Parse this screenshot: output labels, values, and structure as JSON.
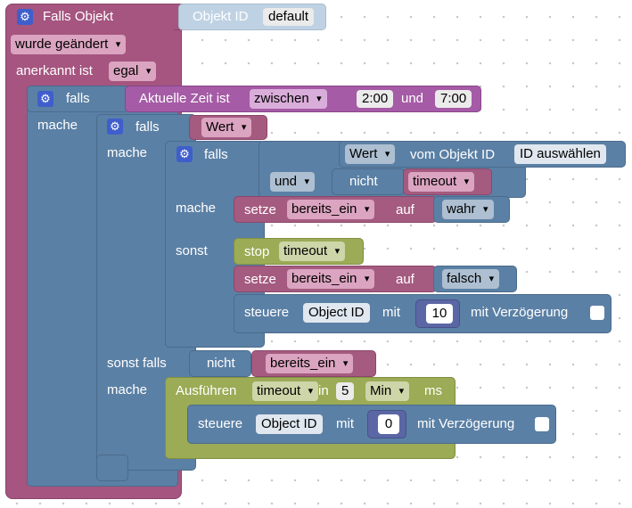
{
  "event": {
    "title": "Falls Objekt",
    "object_id_label": "Objekt ID",
    "object_id_value": "default",
    "changed_option": "wurde geändert",
    "ack_label": "anerkannt ist",
    "ack_option": "egal"
  },
  "if1": {
    "falls": "falls",
    "mache": "mache",
    "time_label": "Aktuelle Zeit ist",
    "time_op": "zwischen",
    "time_from": "2:00",
    "und": "und",
    "time_to": "7:00"
  },
  "if2": {
    "falls": "falls",
    "mache": "mache",
    "sonst_falls": "sonst falls",
    "mache2": "mache",
    "cond_var": "Wert",
    "nicht": "nicht",
    "cond2_var": "bereits_ein"
  },
  "if3": {
    "falls": "falls",
    "mache": "mache",
    "sonst": "sonst",
    "get_var": "Wert",
    "get_label": "vom Objekt ID",
    "get_obj": "ID auswählen",
    "und_op": "und",
    "nicht": "nicht",
    "timeout_var": "timeout"
  },
  "set1": {
    "setze": "setze",
    "var": "bereits_ein",
    "auf": "auf",
    "value": "wahr"
  },
  "stop": {
    "label": "stop",
    "var": "timeout"
  },
  "set2": {
    "setze": "setze",
    "var": "bereits_ein",
    "auf": "auf",
    "value": "falsch"
  },
  "ctl1": {
    "label": "steuere",
    "obj": "Object ID",
    "mit": "mit",
    "value": "10",
    "delay": "mit Verzögerung"
  },
  "timeout": {
    "label": "Ausführen",
    "var": "timeout",
    "in": "in",
    "amount": "5",
    "unit": "Min",
    "ms": "ms"
  },
  "ctl2": {
    "label": "steuere",
    "obj": "Object ID",
    "mit": "mit",
    "value": "0",
    "delay": "mit Verzögerung"
  }
}
